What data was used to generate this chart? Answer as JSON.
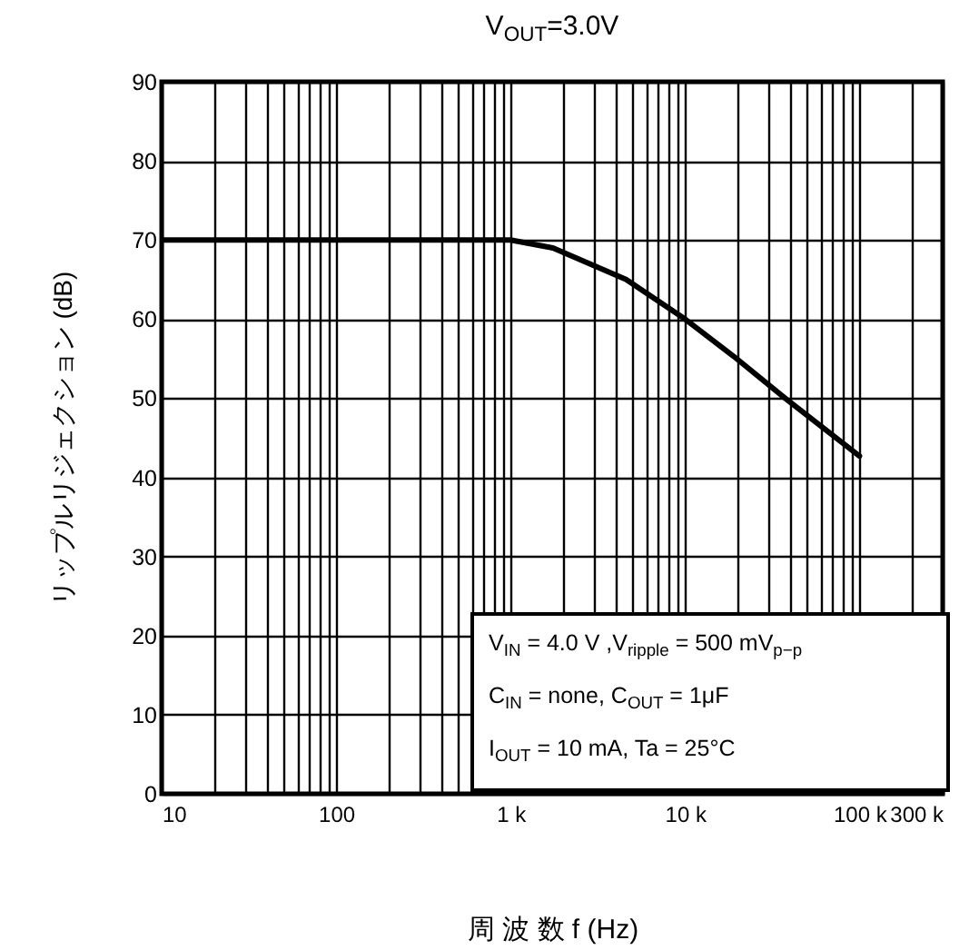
{
  "chart_data": {
    "type": "line",
    "title": "V$_{OUT}$=3.0V",
    "xlabel": "周 波 数  f  (Hz)",
    "ylabel": "リップルリジェクション  (dB)",
    "annotations": [
      "V$_{IN}$ = 4.0 V ,V$_{ripple}$ = 500 mV$_{p−p}$",
      "C$_{IN}$ = none, C$_{OUT}$ = 1μF",
      "I$_{OUT}$ = 10 mA, Ta = 25°C"
    ],
    "x": [
      10,
      100,
      1000,
      1750,
      4600,
      10000,
      19000,
      38000,
      100000
    ],
    "series": [
      {
        "color": "#000000",
        "values": [
          70,
          70,
          70,
          69,
          65,
          60,
          55.3,
          49.9,
          42.7
        ]
      }
    ],
    "xlim": [
      10,
      300000
    ],
    "ylim": [
      0,
      90
    ],
    "xticks": [
      10,
      {
        "value": 20,
        "label": null
      },
      {
        "value": 30,
        "label": null
      },
      {
        "value": 40,
        "label": null
      },
      {
        "value": 50,
        "label": null
      },
      {
        "value": 60,
        "label": null
      },
      {
        "value": 70,
        "label": null
      },
      {
        "value": 80,
        "label": null
      },
      {
        "value": 90,
        "label": null
      },
      100,
      {
        "value": 200,
        "label": null
      },
      {
        "value": 300,
        "label": null
      },
      {
        "value": 400,
        "label": null
      },
      {
        "value": 500,
        "label": null
      },
      {
        "value": 600,
        "label": null
      },
      {
        "value": 700,
        "label": null
      },
      {
        "value": 800,
        "label": null
      },
      {
        "value": 900,
        "label": null
      },
      {
        "value": 1000,
        "label": "1 k"
      },
      {
        "value": 2000,
        "label": null
      },
      {
        "value": 3000,
        "label": null
      },
      {
        "value": 4000,
        "label": null
      },
      {
        "value": 5000,
        "label": null
      },
      {
        "value": 6000,
        "label": null
      },
      {
        "value": 7000,
        "label": null
      },
      {
        "value": 8000,
        "label": null
      },
      {
        "value": 9000,
        "label": null
      },
      {
        "value": 10000,
        "label": "10 k"
      },
      {
        "value": 20000,
        "label": null
      },
      {
        "value": 30000,
        "label": null
      },
      {
        "value": 40000,
        "label": null
      },
      {
        "value": 50000,
        "label": null
      },
      {
        "value": 60000,
        "label": null
      },
      {
        "value": 70000,
        "label": null
      },
      {
        "value": 80000,
        "label": null
      },
      {
        "value": 90000,
        "label": null
      },
      {
        "value": 100000,
        "label": "100 k"
      },
      {
        "value": 200000,
        "label": null
      },
      {
        "value": 300000,
        "label": "300 k"
      }
    ],
    "yticks": [
      0,
      10,
      20,
      30,
      40,
      50,
      60,
      70,
      80,
      90
    ],
    "log": "x",
    "grid": true,
    "line_style": "solid"
  }
}
